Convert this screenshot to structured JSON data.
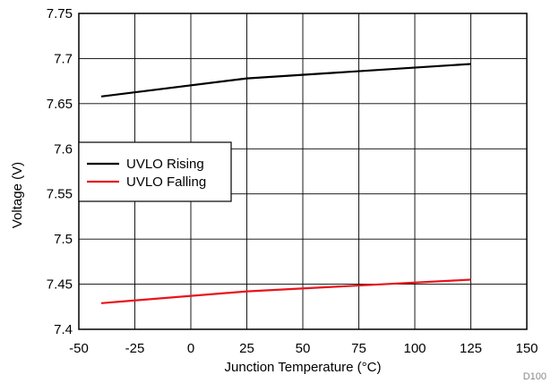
{
  "chart_data": {
    "type": "line",
    "xlabel": "Junction Temperature (°C)",
    "ylabel": "Voltage (V)",
    "xlim": [
      -50,
      150
    ],
    "ylim": [
      7.4,
      7.75
    ],
    "xticks": [
      -50,
      -25,
      0,
      25,
      50,
      75,
      100,
      125,
      150
    ],
    "yticks": [
      7.4,
      7.45,
      7.5,
      7.55,
      7.6,
      7.65,
      7.7,
      7.75
    ],
    "xtick_labels": [
      "-50",
      "-25",
      "0",
      "25",
      "50",
      "75",
      "100",
      "125",
      "150"
    ],
    "ytick_labels": [
      "7.4",
      "7.45",
      "7.5",
      "7.55",
      "7.6",
      "7.65",
      "7.7",
      "7.75"
    ],
    "grid": true,
    "legend_position": "middle-left",
    "series": [
      {
        "name": "UVLO Rising",
        "color": "#000000",
        "x": [
          -40,
          25,
          125
        ],
        "y": [
          7.658,
          7.678,
          7.694
        ]
      },
      {
        "name": "UVLO Falling",
        "color": "#e8141b",
        "x": [
          -40,
          25,
          125
        ],
        "y": [
          7.429,
          7.442,
          7.455
        ]
      }
    ],
    "annotation": "D100"
  }
}
